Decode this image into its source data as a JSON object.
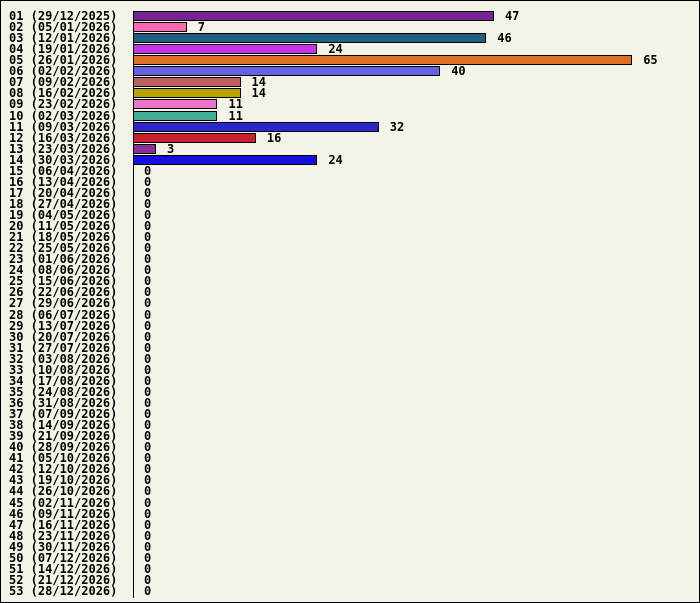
{
  "chart_data": {
    "type": "bar",
    "orientation": "horizontal",
    "title": "",
    "xlabel": "",
    "ylabel": "",
    "xlim": [
      0,
      65
    ],
    "value_labels": true,
    "background": "#f4f3e8",
    "axis_color": "#000000",
    "text_color": "#000000",
    "categories": [
      "01 (29/12/2025)",
      "02 (05/01/2026)",
      "03 (12/01/2026)",
      "04 (19/01/2026)",
      "05 (26/01/2026)",
      "06 (02/02/2026)",
      "07 (09/02/2026)",
      "08 (16/02/2026)",
      "09 (23/02/2026)",
      "10 (02/03/2026)",
      "11 (09/03/2026)",
      "12 (16/03/2026)",
      "13 (23/03/2026)",
      "14 (30/03/2026)",
      "15 (06/04/2026)",
      "16 (13/04/2026)",
      "17 (20/04/2026)",
      "18 (27/04/2026)",
      "19 (04/05/2026)",
      "20 (11/05/2026)",
      "21 (18/05/2026)",
      "22 (25/05/2026)",
      "23 (01/06/2026)",
      "24 (08/06/2026)",
      "25 (15/06/2026)",
      "26 (22/06/2026)",
      "27 (29/06/2026)",
      "28 (06/07/2026)",
      "29 (13/07/2026)",
      "30 (20/07/2026)",
      "31 (27/07/2026)",
      "32 (03/08/2026)",
      "33 (10/08/2026)",
      "34 (17/08/2026)",
      "35 (24/08/2026)",
      "36 (31/08/2026)",
      "37 (07/09/2026)",
      "38 (14/09/2026)",
      "39 (21/09/2026)",
      "40 (28/09/2026)",
      "41 (05/10/2026)",
      "42 (12/10/2026)",
      "43 (19/10/2026)",
      "44 (26/10/2026)",
      "45 (02/11/2026)",
      "46 (09/11/2026)",
      "47 (16/11/2026)",
      "48 (23/11/2026)",
      "49 (30/11/2026)",
      "50 (07/12/2026)",
      "51 (14/12/2026)",
      "52 (21/12/2026)",
      "53 (28/12/2026)"
    ],
    "values": [
      47,
      7,
      46,
      24,
      65,
      40,
      14,
      14,
      11,
      11,
      32,
      16,
      3,
      24,
      0,
      0,
      0,
      0,
      0,
      0,
      0,
      0,
      0,
      0,
      0,
      0,
      0,
      0,
      0,
      0,
      0,
      0,
      0,
      0,
      0,
      0,
      0,
      0,
      0,
      0,
      0,
      0,
      0,
      0,
      0,
      0,
      0,
      0,
      0,
      0,
      0,
      0,
      0
    ],
    "colors": [
      "#782396",
      "#ff69b4",
      "#206080",
      "#c832e8",
      "#dd6e22",
      "#6462e2",
      "#bd5f60",
      "#b8a400",
      "#ea74c9",
      "#42ae99",
      "#2c27cc",
      "#c9202f",
      "#8c3096",
      "#1510e0",
      null,
      null,
      null,
      null,
      null,
      null,
      null,
      null,
      null,
      null,
      null,
      null,
      null,
      null,
      null,
      null,
      null,
      null,
      null,
      null,
      null,
      null,
      null,
      null,
      null,
      null,
      null,
      null,
      null,
      null,
      null,
      null,
      null,
      null,
      null,
      null,
      null,
      null,
      null
    ]
  }
}
